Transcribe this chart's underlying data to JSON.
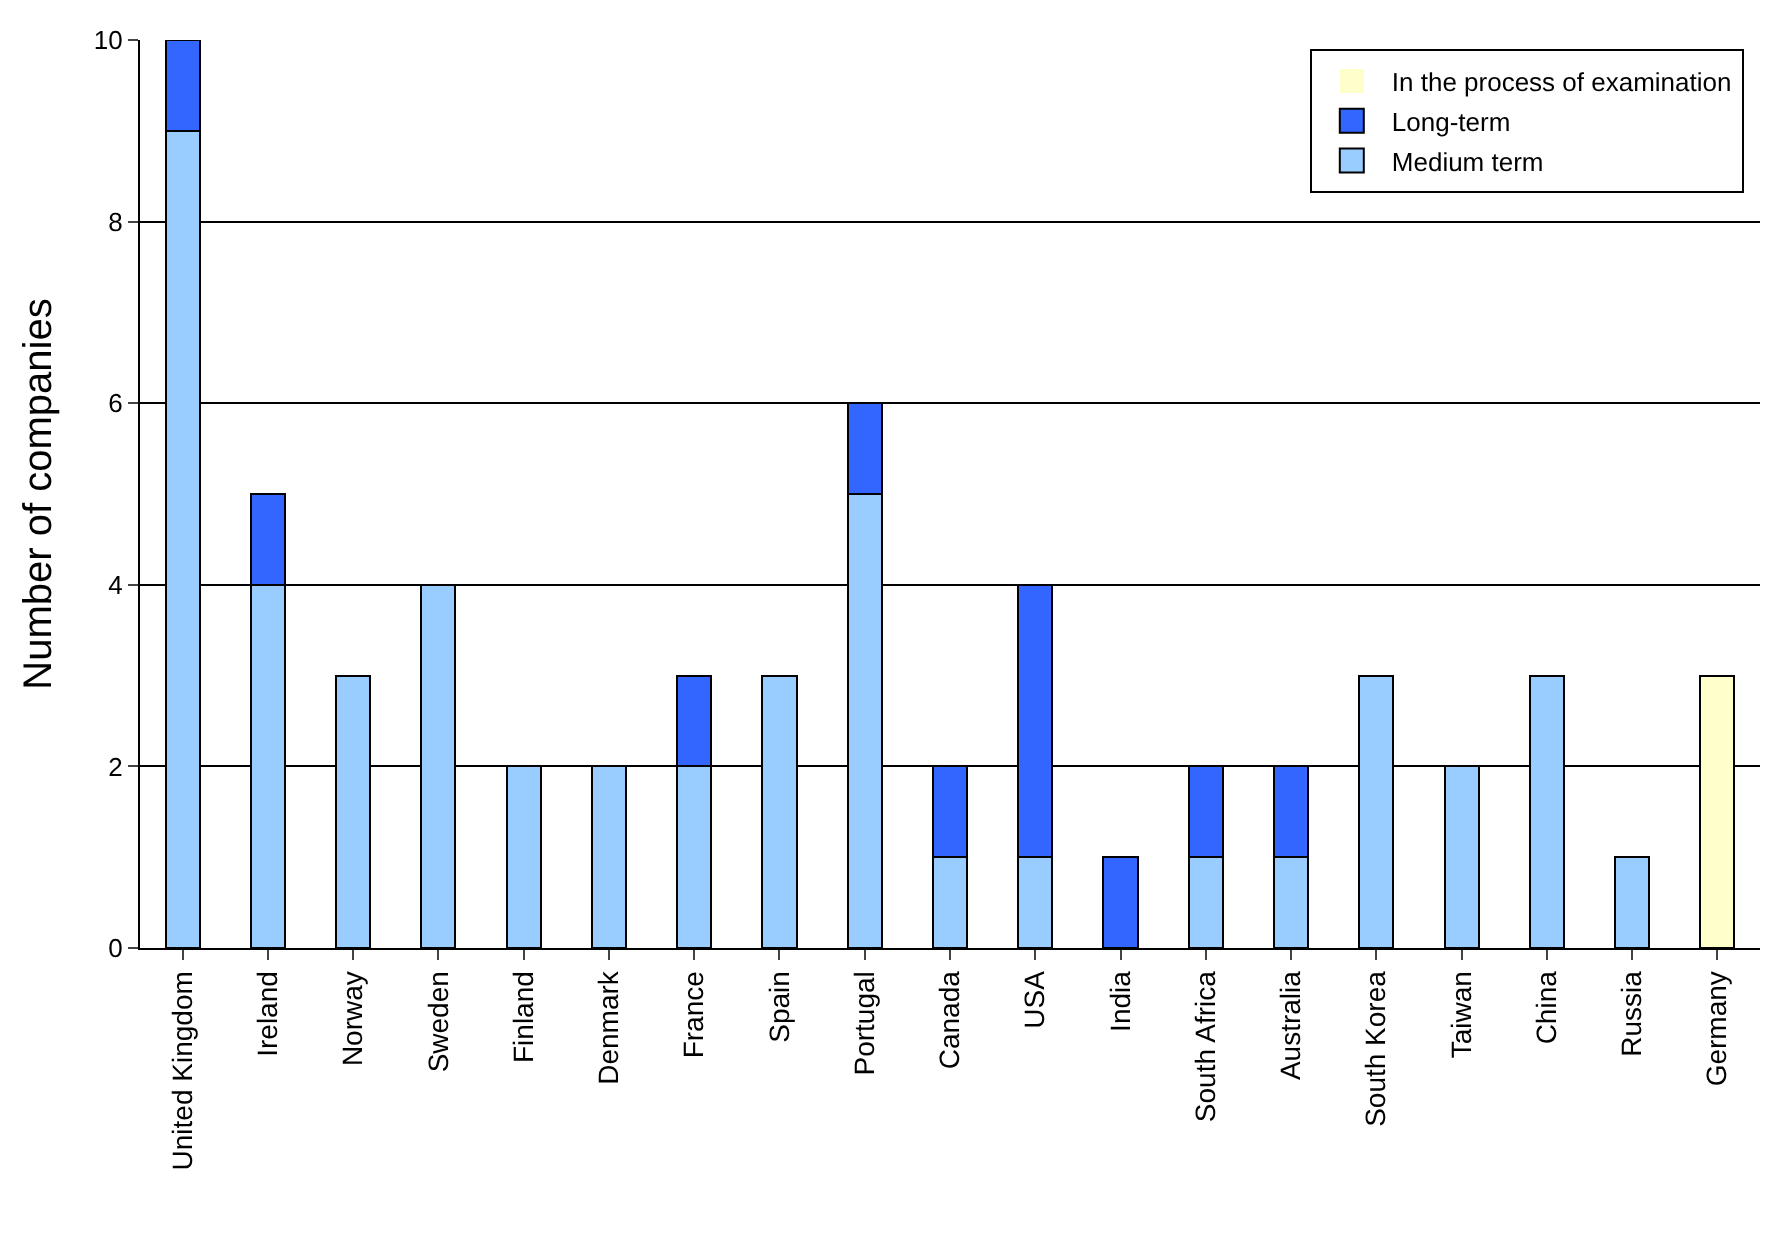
{
  "chart_data": {
    "type": "bar",
    "stacked": true,
    "ylabel": "Number of companies",
    "categories": [
      "United Kingdom",
      "Ireland",
      "Norway",
      "Sweden",
      "Finland",
      "Denmark",
      "France",
      "Spain",
      "Portugal",
      "Canada",
      "USA",
      "India",
      "South Africa",
      "Australia",
      "South Korea",
      "Taiwan",
      "China",
      "Russia",
      "Germany"
    ],
    "series": [
      {
        "name": "Medium term",
        "color": "#99ccff",
        "values": [
          9,
          4,
          3,
          4,
          2,
          2,
          2,
          3,
          5,
          1,
          1,
          0,
          1,
          1,
          3,
          2,
          3,
          1,
          0
        ]
      },
      {
        "name": "Long-term",
        "color": "#3366ff",
        "values": [
          1,
          1,
          0,
          0,
          0,
          0,
          1,
          0,
          1,
          1,
          3,
          1,
          1,
          1,
          0,
          0,
          0,
          0,
          0
        ]
      },
      {
        "name": "In the process of examination",
        "color": "#ffffcc",
        "values": [
          0,
          0,
          0,
          0,
          0,
          0,
          0,
          0,
          0,
          0,
          0,
          0,
          0,
          0,
          0,
          0,
          0,
          0,
          3
        ]
      }
    ],
    "ylim": [
      0,
      10
    ],
    "yticks": [
      0,
      2,
      4,
      6,
      8,
      10
    ],
    "grid": "y",
    "legend": "top right"
  }
}
